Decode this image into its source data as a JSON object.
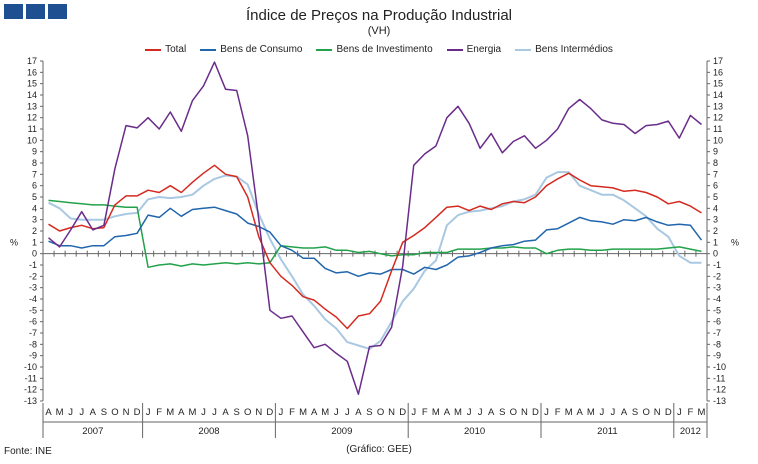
{
  "header": {
    "title": "Índice de Preços na Produção Industrial",
    "subtitle": "(VH)"
  },
  "footer": {
    "source": "Fonte: INE",
    "credit": "(Gráfico: GEE)"
  },
  "colors": {
    "Total": "#d42a20",
    "Bens de Consumo": "#2166ac",
    "Bens de Investimento": "#22a24a",
    "Energia": "#6a2c8a",
    "Bens Intermédios": "#a9c8e2",
    "logo": "#1d4f91"
  },
  "chart_data": {
    "type": "line",
    "title": "Índice de Preços na Produção Industrial",
    "subtitle": "(VH)",
    "ylabel_left": "%",
    "ylabel_right": "%",
    "ylim": [
      -13,
      17
    ],
    "yticks": [
      17,
      16,
      15,
      14,
      13,
      12,
      11,
      10,
      9,
      8,
      7,
      6,
      5,
      4,
      3,
      2,
      1,
      0,
      -1,
      -2,
      -3,
      -4,
      -5,
      -6,
      -7,
      -8,
      -9,
      -10,
      -11,
      -12,
      -13
    ],
    "grid": false,
    "legend_position": "top-center",
    "months": [
      "A",
      "M",
      "J",
      "J",
      "A",
      "S",
      "O",
      "N",
      "D",
      "J",
      "F",
      "M",
      "A",
      "M",
      "J",
      "J",
      "A",
      "S",
      "O",
      "N",
      "D",
      "J",
      "F",
      "M",
      "A",
      "M",
      "J",
      "J",
      "A",
      "S",
      "O",
      "N",
      "D",
      "J",
      "F",
      "M",
      "A",
      "M",
      "J",
      "J",
      "A",
      "S",
      "O",
      "N",
      "D",
      "J",
      "F",
      "M",
      "A",
      "M",
      "J",
      "J",
      "A",
      "S",
      "O",
      "N",
      "D",
      "J",
      "F",
      "M"
    ],
    "years": [
      {
        "label": "2007",
        "start": 0,
        "count": 9
      },
      {
        "label": "2008",
        "start": 9,
        "count": 12
      },
      {
        "label": "2009",
        "start": 21,
        "count": 12
      },
      {
        "label": "2010",
        "start": 33,
        "count": 12
      },
      {
        "label": "2011",
        "start": 45,
        "count": 12
      },
      {
        "label": "2012",
        "start": 57,
        "count": 3
      }
    ],
    "series": [
      {
        "name": "Total",
        "values": [
          2.6,
          2.0,
          2.3,
          2.5,
          2.2,
          2.3,
          4.3,
          5.1,
          5.1,
          5.6,
          5.4,
          6.0,
          5.4,
          6.3,
          7.1,
          7.8,
          7.0,
          6.8,
          5.0,
          1.5,
          -0.8,
          -2.0,
          -2.8,
          -3.8,
          -4.1,
          -4.9,
          -5.6,
          -6.6,
          -5.5,
          -5.3,
          -4.2,
          -1.5,
          1.0,
          1.6,
          2.3,
          3.2,
          4.1,
          4.2,
          3.8,
          4.2,
          3.9,
          4.4,
          4.6,
          4.5,
          5.0,
          6.0,
          6.6,
          7.1,
          6.5,
          6.0,
          5.9,
          5.8,
          5.5,
          5.6,
          5.4,
          5.0,
          4.4,
          4.6,
          4.2,
          3.6
        ]
      },
      {
        "name": "Bens de Consumo",
        "values": [
          1.1,
          0.7,
          0.7,
          0.5,
          0.7,
          0.7,
          1.5,
          1.6,
          1.8,
          3.4,
          3.2,
          4.0,
          3.3,
          3.9,
          4.0,
          4.1,
          3.8,
          3.5,
          2.7,
          2.4,
          1.9,
          0.7,
          0.3,
          -0.4,
          -0.4,
          -1.3,
          -1.7,
          -1.6,
          -2.0,
          -1.7,
          -1.8,
          -1.4,
          -1.4,
          -1.8,
          -1.2,
          -1.4,
          -1.0,
          -0.3,
          -0.2,
          0.1,
          0.5,
          0.7,
          0.8,
          1.1,
          1.2,
          2.1,
          2.2,
          2.7,
          3.2,
          2.9,
          2.8,
          2.6,
          3.0,
          2.9,
          3.2,
          2.8,
          2.5,
          2.6,
          2.5,
          1.2
        ]
      },
      {
        "name": "Bens de Investimento",
        "values": [
          4.7,
          4.6,
          4.5,
          4.4,
          4.3,
          4.3,
          4.2,
          4.1,
          4.1,
          -1.2,
          -1.0,
          -0.9,
          -1.1,
          -0.9,
          -1.0,
          -0.9,
          -0.8,
          -0.9,
          -0.8,
          -0.9,
          -0.8,
          0.7,
          0.6,
          0.5,
          0.5,
          0.6,
          0.3,
          0.3,
          0.1,
          0.2,
          0.0,
          -0.2,
          -0.1,
          -0.1,
          0.1,
          0.1,
          0.1,
          0.4,
          0.4,
          0.4,
          0.5,
          0.5,
          0.6,
          0.5,
          0.5,
          0.0,
          0.3,
          0.4,
          0.4,
          0.3,
          0.3,
          0.4,
          0.4,
          0.4,
          0.4,
          0.4,
          0.5,
          0.6,
          0.4,
          0.2
        ]
      },
      {
        "name": "Energia",
        "values": [
          1.4,
          0.6,
          2.1,
          3.7,
          2.1,
          2.5,
          7.5,
          11.3,
          11.1,
          12.0,
          11.0,
          12.5,
          10.8,
          13.5,
          14.8,
          16.9,
          14.5,
          14.4,
          10.4,
          3.0,
          -5.0,
          -5.7,
          -5.5,
          -6.9,
          -8.3,
          -8.0,
          -8.8,
          -9.5,
          -12.4,
          -8.2,
          -8.1,
          -6.5,
          -1.1,
          7.8,
          8.8,
          9.5,
          12.0,
          13.0,
          11.5,
          9.3,
          10.6,
          8.9,
          9.9,
          10.4,
          9.3,
          10.0,
          11.0,
          12.8,
          13.6,
          12.8,
          11.8,
          11.5,
          11.4,
          10.6,
          11.3,
          11.4,
          11.7,
          10.2,
          12.2,
          11.4
        ]
      },
      {
        "name": "Bens Intermédios",
        "values": [
          4.5,
          4.0,
          3.1,
          3.0,
          3.0,
          3.0,
          3.3,
          3.5,
          3.6,
          4.8,
          5.0,
          4.9,
          5.0,
          5.2,
          6.0,
          6.6,
          6.9,
          6.8,
          6.1,
          3.5,
          1.3,
          -0.5,
          -2.0,
          -3.6,
          -4.6,
          -5.8,
          -6.6,
          -7.8,
          -8.1,
          -8.4,
          -7.7,
          -6.0,
          -4.2,
          -3.1,
          -1.5,
          -0.6,
          2.5,
          3.4,
          3.7,
          3.8,
          4.0,
          4.2,
          4.6,
          4.8,
          5.2,
          6.7,
          7.2,
          7.2,
          6.0,
          5.6,
          5.2,
          5.2,
          4.7,
          4.0,
          3.3,
          2.2,
          1.5,
          -0.2,
          -0.8,
          -0.8
        ]
      }
    ]
  }
}
